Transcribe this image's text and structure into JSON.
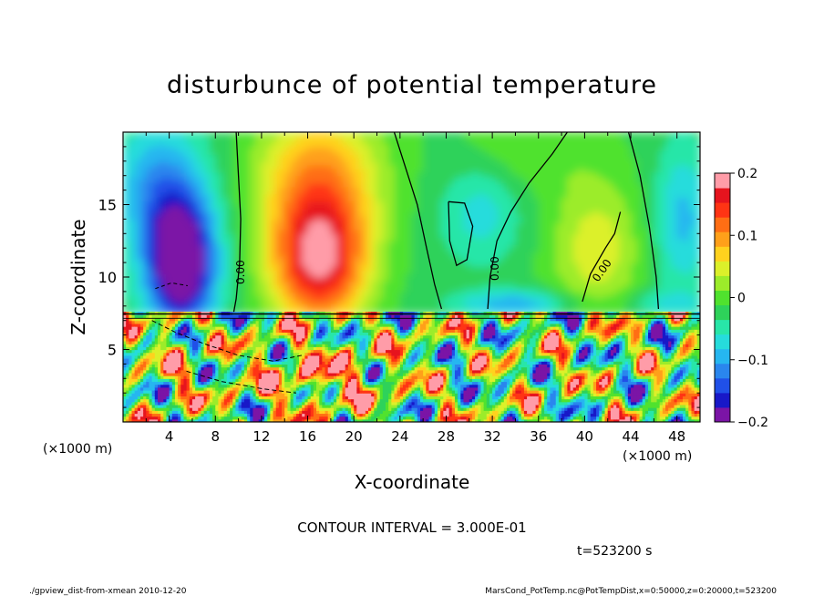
{
  "chart_data": {
    "type": "heatmap",
    "title": "disturbunce of potential temperature",
    "xlabel": "X-coordinate",
    "ylabel": "Z-coordinate",
    "x_unit": "(×1000 m)",
    "y_unit": "(×1000 m)",
    "xlim": [
      0,
      50
    ],
    "ylim": [
      0,
      20
    ],
    "x_ticks": [
      "4",
      "8",
      "12",
      "16",
      "20",
      "24",
      "28",
      "32",
      "36",
      "40",
      "44",
      "48"
    ],
    "y_ticks": [
      "5",
      "10",
      "15"
    ],
    "contour_labels": [
      "0.00",
      "0.00",
      "0.00"
    ],
    "contour_interval_text": "CONTOUR INTERVAL = 3.000E-01",
    "time_text": "t=523200 s",
    "colorbar": {
      "range": [
        -0.2,
        0.2
      ],
      "tick_labels": [
        "0.2",
        "0.1",
        "0",
        "−0.1",
        "−0.2"
      ],
      "tick_values": [
        0.2,
        0.1,
        0,
        -0.1,
        -0.2
      ],
      "colors": [
        "#7b14a6",
        "#1818c8",
        "#2050e8",
        "#2a86ee",
        "#26b6f0",
        "#26dcdc",
        "#28e6a8",
        "#2ed25a",
        "#50e22e",
        "#9cec2a",
        "#dcf02a",
        "#ffd21e",
        "#ffa01a",
        "#ff6e14",
        "#ff3414",
        "#e6141e",
        "#ff9ca8"
      ]
    }
  },
  "footer": {
    "left": "./gpview_dist-from-xmean 2010-12-20",
    "right": "MarsCond_PotTemp.nc@PotTempDist,x=0:50000,z=0:20000,t=523200"
  }
}
